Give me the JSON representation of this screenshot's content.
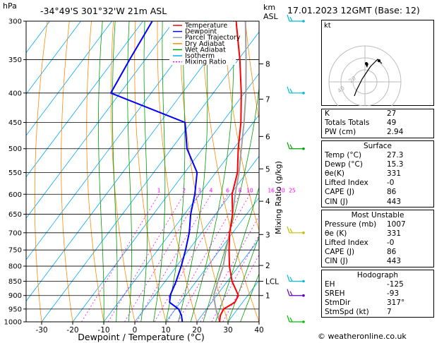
{
  "header": {
    "pressure_unit": "hPa",
    "location": "-34°49'S  301°32'W  21m  ASL",
    "height_unit_km": "km",
    "height_unit_asl": "ASL",
    "datetime": "17.01.2023  12GMT  (Base: 12)"
  },
  "footer": {
    "copyright": "© weatheronline.co.uk"
  },
  "hodograph": {
    "label": "kt",
    "ring_labels": [
      "20",
      "40"
    ]
  },
  "indices": {
    "top": [
      {
        "label": "K",
        "value": "27"
      },
      {
        "label": "Totals Totals",
        "value": "49"
      },
      {
        "label": "PW (cm)",
        "value": "2.94"
      }
    ],
    "surface": {
      "title": "Surface",
      "rows": [
        {
          "label": "Temp (°C)",
          "value": "27.3"
        },
        {
          "label": "Dewp (°C)",
          "value": "15.3"
        },
        {
          "label": "θe(K)",
          "value": "331"
        },
        {
          "label": "Lifted Index",
          "value": "-0"
        },
        {
          "label": "CAPE (J)",
          "value": "86"
        },
        {
          "label": "CIN (J)",
          "value": "443"
        }
      ]
    },
    "most_unstable": {
      "title": "Most Unstable",
      "rows": [
        {
          "label": "Pressure (mb)",
          "value": "1007"
        },
        {
          "label": "θe (K)",
          "value": "331"
        },
        {
          "label": "Lifted Index",
          "value": "-0"
        },
        {
          "label": "CAPE (J)",
          "value": "86"
        },
        {
          "label": "CIN (J)",
          "value": "443"
        }
      ]
    },
    "hodograph": {
      "title": "Hodograph",
      "rows": [
        {
          "label": "EH",
          "value": "-125"
        },
        {
          "label": "SREH",
          "value": "-93"
        },
        {
          "label": "StmDir",
          "value": "317°"
        },
        {
          "label": "StmSpd (kt)",
          "value": "7"
        }
      ]
    }
  },
  "chart_data": {
    "type": "line",
    "xlabel": "Dewpoint / Temperature (°C)",
    "ylabel_right": "Mixing Ratio (g/kg)",
    "xlim": [
      -35,
      40
    ],
    "pressure_range": [
      1000,
      300
    ],
    "pressure_ticks": [
      300,
      350,
      400,
      450,
      500,
      550,
      600,
      650,
      700,
      750,
      800,
      850,
      900,
      950,
      1000
    ],
    "temp_ticks": [
      -30,
      -20,
      -10,
      0,
      10,
      20,
      30,
      40
    ],
    "height_km_ticks": [
      {
        "label": "8",
        "p": 356
      },
      {
        "label": "7",
        "p": 410
      },
      {
        "label": "6",
        "p": 476
      },
      {
        "label": "5",
        "p": 542
      },
      {
        "label": "4",
        "p": 617
      },
      {
        "label": "3",
        "p": 705
      },
      {
        "label": "2",
        "p": 798
      },
      {
        "label": "LCL",
        "p": 850
      },
      {
        "label": "1",
        "p": 900
      }
    ],
    "mixing_ratio_labels": [
      "1",
      "2",
      "3",
      "4",
      "6",
      "8",
      "10",
      "16",
      "20",
      "25"
    ],
    "mixing_ratio_values": [
      1,
      2,
      3,
      4,
      6,
      8,
      10,
      16,
      20,
      25
    ],
    "legend": [
      "Temperature",
      "Dewpoint",
      "Parcel Trajectory",
      "Dry Adiabat",
      "Wet Adiabat",
      "Isotherm",
      "Mixing Ratio"
    ],
    "colors": {
      "temperature": "#ff0000",
      "dewpoint": "#0000ff",
      "parcel": "#a0a0a0",
      "dry_adiabat": "#ff8c00",
      "wet_adiabat": "#00a000",
      "isotherm": "#00aaff",
      "mixing_ratio": "#ff00ff"
    },
    "series": [
      {
        "name": "Temperature",
        "p": [
          1000,
          975,
          950,
          925,
          900,
          850,
          800,
          750,
          700,
          650,
          600,
          550,
          500,
          450,
          400,
          350,
          300
        ],
        "t": [
          27.3,
          26,
          25.5,
          27.5,
          27,
          21.5,
          17,
          13,
          9,
          5.5,
          0.5,
          -3,
          -8.5,
          -14,
          -21,
          -29.5,
          -40
        ]
      },
      {
        "name": "Dewpoint",
        "p": [
          1000,
          975,
          950,
          925,
          900,
          850,
          800,
          750,
          700,
          650,
          600,
          550,
          500,
          450,
          400,
          350,
          300
        ],
        "t": [
          15.3,
          13.5,
          11,
          6.5,
          5,
          3.5,
          1.5,
          -1,
          -4,
          -8,
          -11.5,
          -16,
          -25,
          -32,
          -63,
          -65,
          -67
        ]
      },
      {
        "name": "Parcel Trajectory",
        "p": [
          1000,
          950,
          900,
          850,
          800,
          750,
          700,
          650,
          600,
          550,
          500,
          450,
          400,
          350,
          300
        ],
        "t": [
          27.3,
          23,
          19,
          17,
          15,
          12,
          9,
          5.5,
          1.5,
          -2.5,
          -7.5,
          -13,
          -19.5,
          -27.5,
          -37
        ]
      }
    ],
    "wind_barbs": [
      {
        "p": 300,
        "color": "#00bcd4"
      },
      {
        "p": 400,
        "color": "#00bcd4"
      },
      {
        "p": 500,
        "color": "#00a000"
      },
      {
        "p": 700,
        "color": "#c0c000"
      },
      {
        "p": 850,
        "color": "#00bcd4"
      },
      {
        "p": 900,
        "color": "#6000c0"
      },
      {
        "p": 1000,
        "color": "#00c000"
      }
    ]
  }
}
